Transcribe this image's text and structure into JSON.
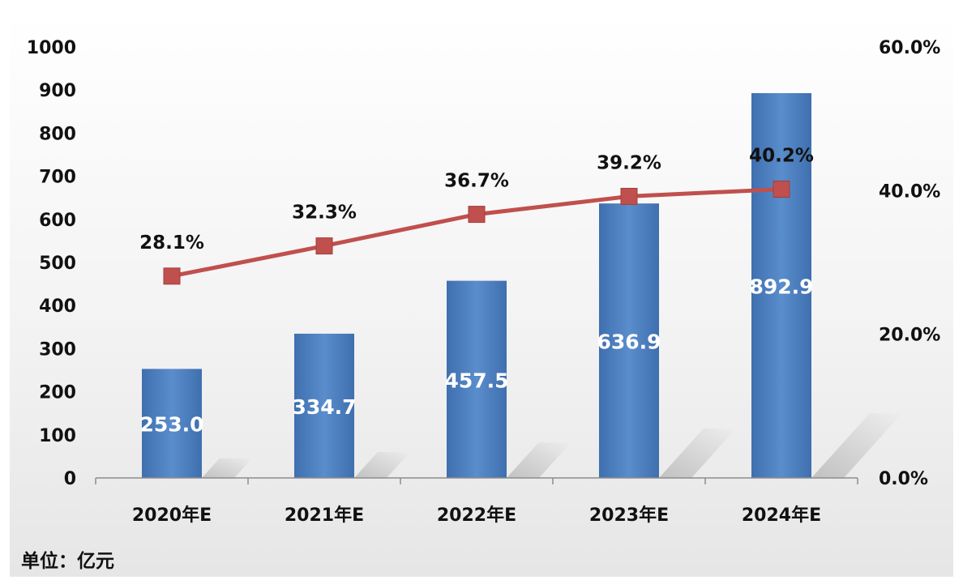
{
  "chart_data": {
    "type": "bar",
    "categories": [
      "2020年E",
      "2021年E",
      "2022年E",
      "2023年E",
      "2024年E"
    ],
    "series": [
      {
        "type": "bar",
        "axis": "left",
        "values": [
          253.0,
          334.7,
          457.5,
          636.9,
          892.9
        ],
        "labels": [
          "253.0",
          "334.7",
          "457.5",
          "636.9",
          "892.9"
        ],
        "color": "#4a7fc1"
      },
      {
        "type": "line",
        "axis": "right",
        "values": [
          28.1,
          32.3,
          36.7,
          39.2,
          40.2
        ],
        "labels": [
          "28.1%",
          "32.3%",
          "36.7%",
          "39.2%",
          "40.2%"
        ],
        "color": "#c0504d"
      }
    ],
    "y_left": {
      "range": [
        0,
        1000
      ],
      "ticks": [
        "0",
        "100",
        "200",
        "300",
        "400",
        "500",
        "600",
        "700",
        "800",
        "900",
        "1000"
      ]
    },
    "y_right": {
      "range": [
        0,
        60
      ],
      "ticks": [
        "0.0%",
        "20.0%",
        "40.0%",
        "60.0%"
      ]
    },
    "unit_note": "单位：亿元",
    "grid": false,
    "legend": "none"
  }
}
